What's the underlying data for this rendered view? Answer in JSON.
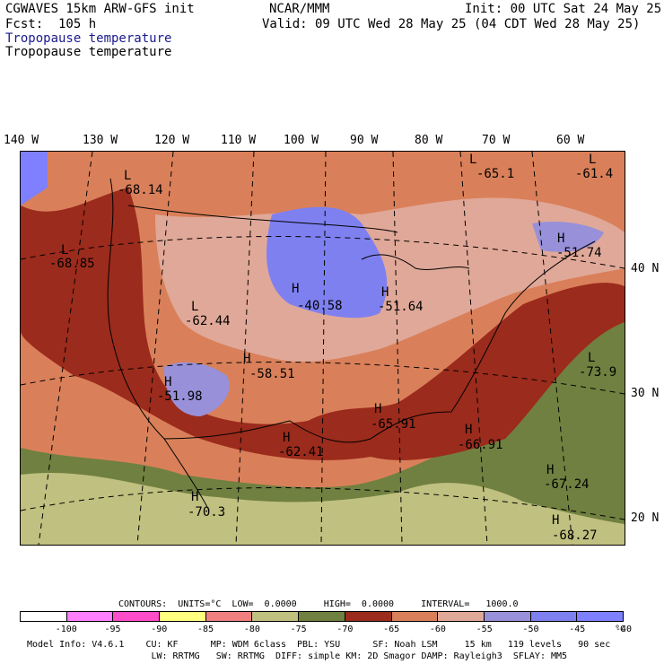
{
  "header": {
    "model": "CGWAVES 15km ARW-GFS init",
    "org": "NCAR/MMM",
    "init": "Init: 00 UTC Sat 24 May 25",
    "fcst": "Fcst:  105 h",
    "valid": "Valid: 09 UTC Wed 28 May 25 (04 CDT Wed 28 May 25)",
    "field1": "Tropopause temperature",
    "field2": "Tropopause temperature"
  },
  "lon_labels": [
    "140 W",
    "130 W",
    "120 W",
    "110 W",
    "100 W",
    "90 W",
    "80 W",
    "70 W",
    "60 W"
  ],
  "lat_labels": [
    "40 N",
    "30 N",
    "20 N"
  ],
  "map_labels": [
    {
      "letter": "L",
      "value": "-65.1"
    },
    {
      "letter": "L",
      "value": "-61.4"
    },
    {
      "letter": "L",
      "value": "-68.14"
    },
    {
      "letter": "L",
      "value": "-68.85"
    },
    {
      "letter": "H",
      "value": "-51.74"
    },
    {
      "letter": "H",
      "value": "-40.58"
    },
    {
      "letter": "H",
      "value": "-51.64"
    },
    {
      "letter": "L",
      "value": "-62.44"
    },
    {
      "letter": "H",
      "value": "-58.51"
    },
    {
      "letter": "H",
      "value": "-51.98"
    },
    {
      "letter": "L",
      "value": "-73.9"
    },
    {
      "letter": "H",
      "value": "-65.91"
    },
    {
      "letter": "H",
      "value": "-62.41"
    },
    {
      "letter": "H",
      "value": "-66.91"
    },
    {
      "letter": "H",
      "value": "-67.24"
    },
    {
      "letter": "H",
      "value": "-70.3"
    },
    {
      "letter": "H",
      "value": "-68.27"
    }
  ],
  "contours": "CONTOURS:  UNITS=°C  LOW=  0.0000     HIGH=  0.0000     INTERVAL=   1000.0",
  "colorbar": {
    "colors": [
      "#ffffff",
      "#ff80ff",
      "#ff4cc8",
      "#ffff80",
      "#f08080",
      "#c0c080",
      "#708040",
      "#9b2b1c",
      "#d9805a",
      "#e0a898",
      "#9890d8",
      "#7f80f0",
      "#7f80ff"
    ],
    "labels": [
      "-100",
      "-95",
      "-90",
      "-85",
      "-80",
      "-75",
      "-70",
      "-65",
      "-60",
      "-55",
      "-50",
      "-45",
      "-40",
      "°C"
    ]
  },
  "footer": {
    "line1": "Model Info: V4.6.1    CU: KF      MP: WDM 6class  PBL: YSU      SF: Noah LSM     15 km   119 levels   90 sec",
    "line2": "                       LW: RRTMG   SW: RRTMG  DIFF: simple KM: 2D Smagor DAMP: Rayleigh3  SFLAY: MM5"
  }
}
